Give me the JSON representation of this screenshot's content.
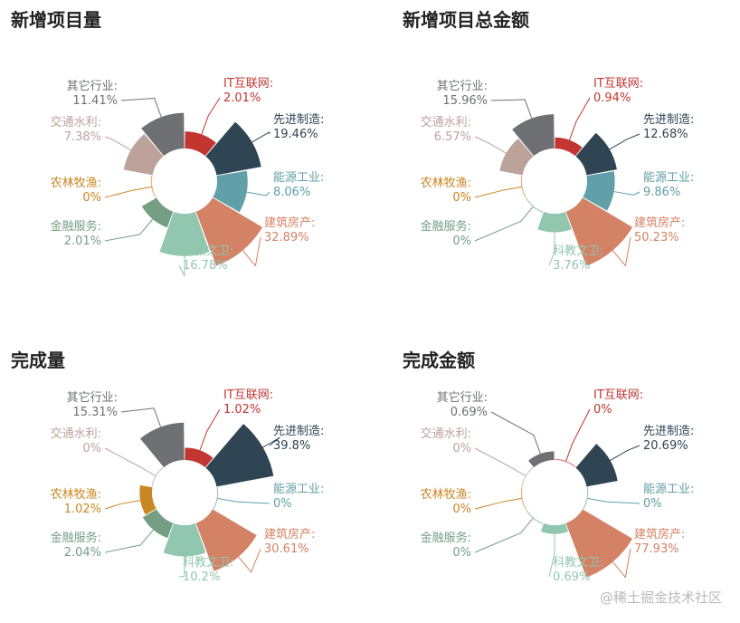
{
  "colors": {
    "IT互联网": "#c23531",
    "先进制造": "#2f4554",
    "能源工业": "#61a0a8",
    "建筑房产": "#d48265",
    "科教文卫": "#91c7ae",
    "金融服务": "#749f83",
    "农林牧渔": "#ca8622",
    "交通水利": "#bda29a",
    "其它行业": "#6e7074"
  },
  "watermark": "@稀土掘金技术社区",
  "chart_data": [
    {
      "type": "pie",
      "title": "新增项目量",
      "categories": [
        "IT互联网",
        "先进制造",
        "能源工业",
        "建筑房产",
        "科教文卫",
        "金融服务",
        "农林牧渔",
        "交通水利",
        "其它行业"
      ],
      "values": [
        2.01,
        19.46,
        8.06,
        32.89,
        16.78,
        2.01,
        0,
        7.38,
        11.41
      ],
      "labels": [
        "2.01%",
        "19.46%",
        "8.06%",
        "32.89%",
        "16.78%",
        "2.01%",
        "0%",
        "7.38%",
        "11.41%"
      ]
    },
    {
      "type": "pie",
      "title": "新增项目总金额",
      "categories": [
        "IT互联网",
        "先进制造",
        "能源工业",
        "建筑房产",
        "科教文卫",
        "金融服务",
        "农林牧渔",
        "交通水利",
        "其它行业"
      ],
      "values": [
        0.94,
        12.68,
        9.86,
        50.23,
        3.76,
        0,
        0,
        6.57,
        15.96
      ],
      "labels": [
        "0.94%",
        "12.68%",
        "9.86%",
        "50.23%",
        "3.76%",
        "0%",
        "0%",
        "6.57%",
        "15.96%"
      ]
    },
    {
      "type": "pie",
      "title": "完成量",
      "categories": [
        "IT互联网",
        "先进制造",
        "能源工业",
        "建筑房产",
        "科教文卫",
        "金融服务",
        "农林牧渔",
        "交通水利",
        "其它行业"
      ],
      "values": [
        1.02,
        39.8,
        0,
        30.61,
        10.2,
        2.04,
        1.02,
        0,
        15.31
      ],
      "labels": [
        "1.02%",
        "39.8%",
        "0%",
        "30.61%",
        "10.2%",
        "2.04%",
        "1.02%",
        "0%",
        "15.31%"
      ]
    },
    {
      "type": "pie",
      "title": "完成金额",
      "categories": [
        "IT互联网",
        "先进制造",
        "能源工业",
        "建筑房产",
        "科教文卫",
        "金融服务",
        "农林牧渔",
        "交通水利",
        "其它行业"
      ],
      "values": [
        0,
        20.69,
        0,
        77.93,
        0.69,
        0,
        0,
        0,
        0.69
      ],
      "labels": [
        "0%",
        "20.69%",
        "0%",
        "77.93%",
        "0.69%",
        "0%",
        "0%",
        "0%",
        "0.69%"
      ]
    }
  ]
}
